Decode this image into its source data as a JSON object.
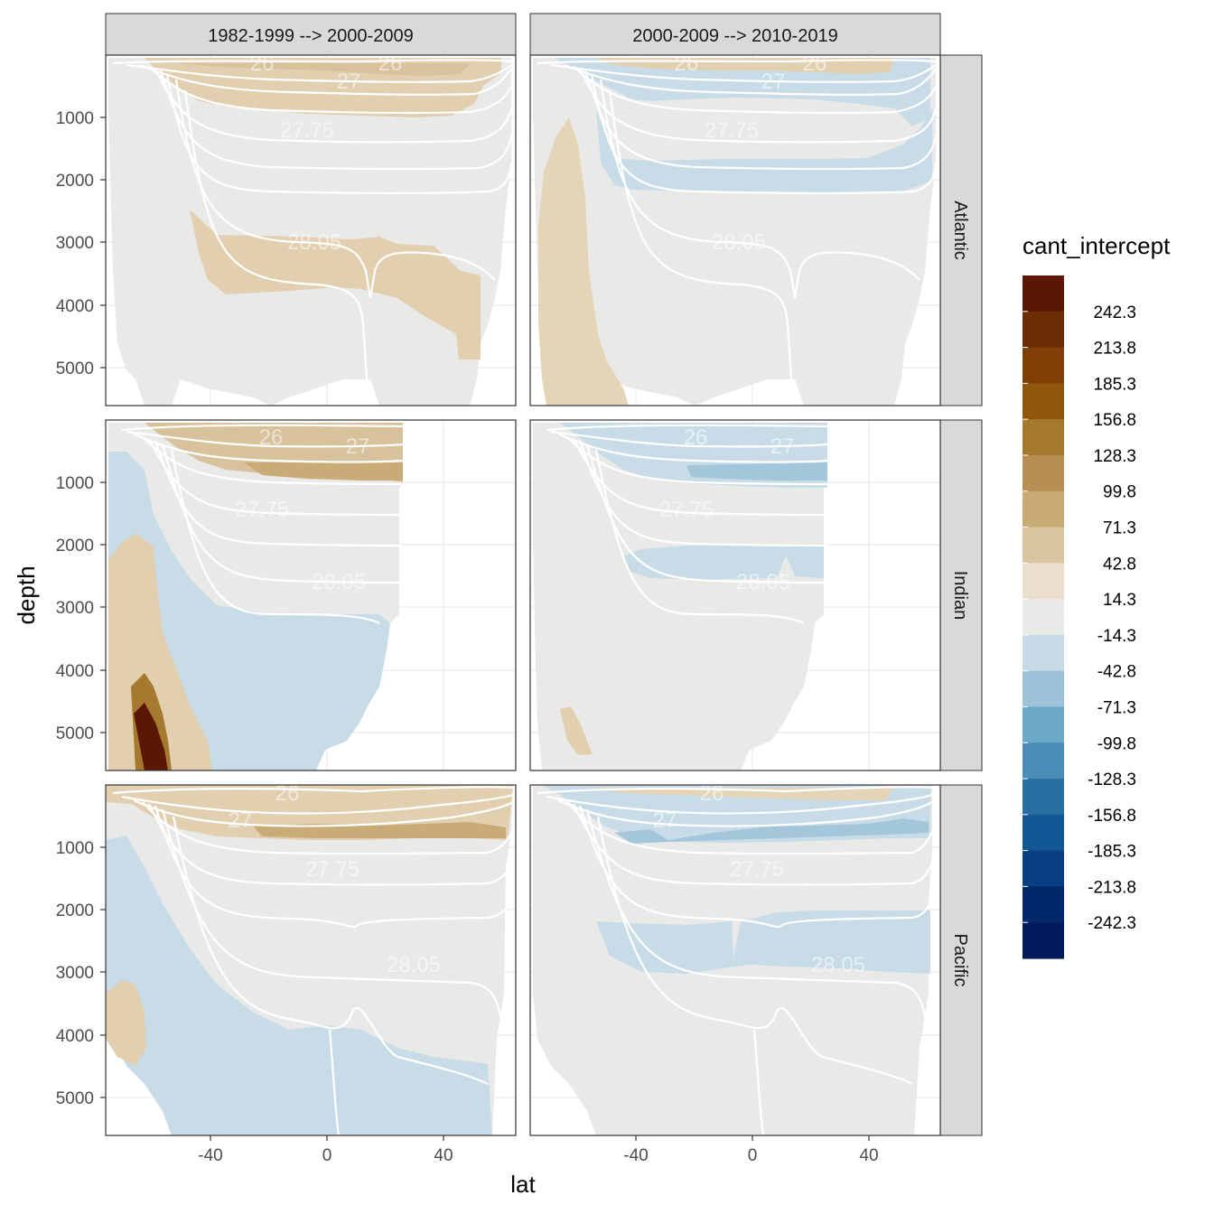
{
  "chart_data": {
    "type": "heatmap",
    "subtype": "faceted filled-contour ocean section",
    "variable": "cant_intercept",
    "xlabel": "lat",
    "ylabel": "depth",
    "xlim": [
      -73,
      68
    ],
    "ylim": [
      5650,
      0
    ],
    "x_ticks": [
      -40,
      0,
      40
    ],
    "x_tick_labels": [
      "-40",
      "0",
      "40"
    ],
    "y_ticks": [
      1000,
      2000,
      3000,
      4000,
      5000
    ],
    "y_tick_labels": [
      "1000",
      "2000",
      "3000",
      "4000",
      "5000"
    ],
    "columns": [
      "1982-1999 --> 2000-2009",
      "2000-2009 --> 2010-2019"
    ],
    "rows": [
      "Atlantic",
      "Indian",
      "Pacific"
    ],
    "isopycnal_labels": [
      "26",
      "27",
      "27.75",
      "28.05"
    ],
    "legend": {
      "title": "cant_intercept",
      "labels": [
        "242.3",
        "213.8",
        "185.3",
        "156.8",
        "128.3",
        "99.8",
        "71.3",
        "42.8",
        "14.3",
        "-14.3",
        "-42.8",
        "-71.3",
        "-99.8",
        "-128.3",
        "-156.8",
        "-185.3",
        "-213.8",
        "-242.3"
      ],
      "colors": [
        "#5c1604",
        "#6e2c04",
        "#803f06",
        "#8e570a",
        "#a5792e",
        "#b78f52",
        "#c8aa74",
        "#d9c6a0",
        "#eadfcc",
        "#e9eae8",
        "#c6dbe7",
        "#9cc3d8",
        "#6ca8c8",
        "#4a8db6",
        "#2a6fa2",
        "#125894",
        "#073f82",
        "#02286a",
        "#011a5c"
      ]
    },
    "colors": {
      "ocean_neutral": "#e9eae8",
      "positive_light": "#e6d8bf",
      "positive_mid": "#d6bf94",
      "positive_strong": "#c9ab78",
      "negative_light": "#c8dce8",
      "negative_mid": "#a3c6da",
      "isopycnal_line": "#ffffff",
      "strip_fill": "#d9d9d9",
      "panel_border": "#333333",
      "grid": "#ebebeb"
    },
    "panels": [
      {
        "row": "Atlantic",
        "col": "1982-1999 --> 2000-2009",
        "features": [
          {
            "sign": "positive",
            "strength": "light",
            "region": "upper ocean between 26 and 27.75 isopycnals, about 50S to 55N, 200-600 m"
          },
          {
            "sign": "positive",
            "strength": "light",
            "region": "deep layer near 28.05 isopycnal, about 35S to 55N, 2500-4000 m"
          }
        ]
      },
      {
        "row": "Atlantic",
        "col": "2000-2009 --> 2010-2019",
        "features": [
          {
            "sign": "positive",
            "strength": "light",
            "region": "thin surface band above 26 isopycnal, 200-300 m"
          },
          {
            "sign": "negative",
            "strength": "light",
            "region": "band 400-1000 m, 60S to 55N"
          },
          {
            "sign": "negative",
            "strength": "light",
            "region": "mid-depth band 1400-2000 m, 45S to 60N"
          },
          {
            "sign": "positive",
            "strength": "light",
            "region": "Southern Ocean column, 72S to 50S, 400-5600 m"
          }
        ]
      },
      {
        "row": "Indian",
        "col": "1982-1999 --> 2000-2009",
        "features": [
          {
            "sign": "positive",
            "strength": "mid",
            "region": "upper 200-800 m, 50S to 25N"
          },
          {
            "sign": "negative",
            "strength": "light",
            "region": "Southern Ocean deep slope and abyss below 3000 m, 72S to 25N"
          },
          {
            "sign": "positive",
            "strength": "strong",
            "region": "bottom water core near 55S, 4500-5600 m, values up to 242.3"
          }
        ]
      },
      {
        "row": "Indian",
        "col": "2000-2009 --> 2010-2019",
        "features": [
          {
            "sign": "negative",
            "strength": "mid",
            "region": "upper 200-1000 m, 60S to 25N"
          },
          {
            "sign": "negative",
            "strength": "light",
            "region": "mid-depth band 2000-2600 m, 35S to 25N"
          },
          {
            "sign": "positive",
            "strength": "light",
            "region": "small bottom patch near 60S, 4500-5600 m"
          }
        ]
      },
      {
        "row": "Pacific",
        "col": "1982-1999 --> 2000-2009",
        "features": [
          {
            "sign": "positive",
            "strength": "mid",
            "region": "upper 0-1000 m, 72S to 60N"
          },
          {
            "sign": "negative",
            "strength": "light",
            "region": "Southern Ocean deep slope and abyss below 3500 m, 72S to 55N"
          },
          {
            "sign": "positive",
            "strength": "light",
            "region": "deep patch near 65S, 3500-5000 m"
          }
        ]
      },
      {
        "row": "Pacific",
        "col": "2000-2009 --> 2010-2019",
        "features": [
          {
            "sign": "negative",
            "strength": "mid",
            "region": "upper 0-1000 m, 72S to 60N"
          },
          {
            "sign": "negative",
            "strength": "light",
            "region": "mid-depth band 2000-3000 m, 45S to 60N"
          }
        ]
      }
    ]
  }
}
